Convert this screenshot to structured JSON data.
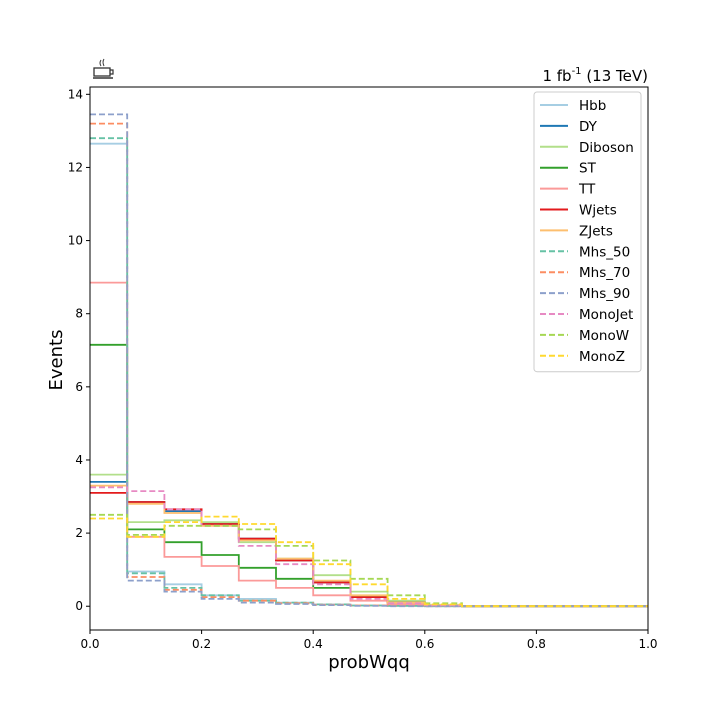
{
  "chart_data": {
    "type": "line",
    "drawstyle": "step",
    "title_right": "1 fb",
    "title_right_sup": "-1",
    "title_right_suffix": " (13 TeV)",
    "xlabel": "probWqq",
    "ylabel": "Events",
    "xlim": [
      0,
      1
    ],
    "ylim": [
      -0.65,
      14.2
    ],
    "xticks": [
      0,
      0.2,
      0.4,
      0.6,
      0.8,
      1.0
    ],
    "xtick_labels": [
      "0.0",
      "0.2",
      "0.4",
      "0.6",
      "0.8",
      "1.0"
    ],
    "yticks": [
      0,
      2,
      4,
      6,
      8,
      10,
      12,
      14
    ],
    "ytick_labels": [
      "0",
      "2",
      "4",
      "6",
      "8",
      "10",
      "12",
      "14"
    ],
    "grid": false,
    "legend_position": "top-right",
    "bin_edges": [
      0,
      0.0667,
      0.1333,
      0.2,
      0.2667,
      0.3333,
      0.4,
      0.4667,
      0.5333,
      0.6,
      0.6667,
      0.7333,
      0.8,
      0.8667,
      0.9333,
      1.0
    ],
    "series": [
      {
        "name": "Hbb",
        "color": "#a6cee3",
        "style": "solid",
        "values": [
          12.65,
          0.95,
          0.6,
          0.3,
          0.2,
          0.1,
          0.05,
          0.02,
          0.01,
          0,
          0,
          0,
          0,
          0,
          0
        ]
      },
      {
        "name": "DY",
        "color": "#1f78b4",
        "style": "solid",
        "values": [
          3.4,
          2.85,
          2.6,
          2.25,
          1.85,
          1.25,
          0.65,
          0.25,
          0.1,
          0.02,
          0,
          0,
          0,
          0,
          0
        ]
      },
      {
        "name": "Diboson",
        "color": "#b2df8a",
        "style": "solid",
        "values": [
          3.6,
          2.3,
          2.35,
          2.3,
          1.75,
          1.3,
          0.85,
          0.4,
          0.15,
          0.03,
          0,
          0,
          0,
          0,
          0
        ]
      },
      {
        "name": "ST",
        "color": "#33a02c",
        "style": "solid",
        "values": [
          7.15,
          2.1,
          1.75,
          1.4,
          1.05,
          0.75,
          0.5,
          0.25,
          0.1,
          0.02,
          0,
          0,
          0,
          0,
          0
        ]
      },
      {
        "name": "TT",
        "color": "#fb9a99",
        "style": "solid",
        "values": [
          8.85,
          1.9,
          1.35,
          1.1,
          0.7,
          0.5,
          0.3,
          0.15,
          0.05,
          0.01,
          0,
          0,
          0,
          0,
          0
        ]
      },
      {
        "name": "Wjets",
        "color": "#e31a1c",
        "style": "solid",
        "values": [
          3.1,
          2.85,
          2.65,
          2.25,
          1.85,
          1.25,
          0.65,
          0.25,
          0.1,
          0.02,
          0,
          0,
          0,
          0,
          0
        ]
      },
      {
        "name": "ZJets",
        "color": "#fdbf6f",
        "style": "solid",
        "values": [
          3.3,
          2.8,
          2.55,
          2.2,
          1.8,
          1.3,
          0.7,
          0.3,
          0.1,
          0.02,
          0,
          0,
          0,
          0,
          0
        ]
      },
      {
        "name": "Mhs_50",
        "color": "#66c2a5",
        "style": "dashed",
        "values": [
          12.8,
          0.9,
          0.5,
          0.3,
          0.15,
          0.1,
          0.05,
          0.02,
          0.01,
          0,
          0,
          0,
          0,
          0,
          0
        ]
      },
      {
        "name": "Mhs_70",
        "color": "#fc8d62",
        "style": "dashed",
        "values": [
          13.2,
          0.8,
          0.45,
          0.25,
          0.15,
          0.08,
          0.04,
          0.02,
          0.01,
          0,
          0,
          0,
          0,
          0,
          0
        ]
      },
      {
        "name": "Mhs_90",
        "color": "#8da0cb",
        "style": "dashed",
        "values": [
          13.45,
          0.7,
          0.4,
          0.2,
          0.1,
          0.06,
          0.03,
          0.01,
          0,
          0,
          0,
          0,
          0,
          0,
          0
        ]
      },
      {
        "name": "MonoJet",
        "color": "#e78ac3",
        "style": "dashed",
        "values": [
          3.25,
          3.15,
          2.65,
          2.2,
          1.65,
          1.15,
          0.6,
          0.2,
          0.08,
          0.02,
          0,
          0,
          0,
          0,
          0
        ]
      },
      {
        "name": "MonoW",
        "color": "#a6d854",
        "style": "dashed",
        "values": [
          2.5,
          1.95,
          2.2,
          2.2,
          2.1,
          1.65,
          1.25,
          0.75,
          0.3,
          0.08,
          0,
          0,
          0,
          0,
          0
        ]
      },
      {
        "name": "MonoZ",
        "color": "#ffd92f",
        "style": "dashed",
        "values": [
          2.4,
          1.9,
          2.3,
          2.45,
          2.25,
          1.75,
          1.15,
          0.6,
          0.2,
          0.05,
          0,
          0,
          0,
          0,
          0
        ]
      }
    ]
  }
}
